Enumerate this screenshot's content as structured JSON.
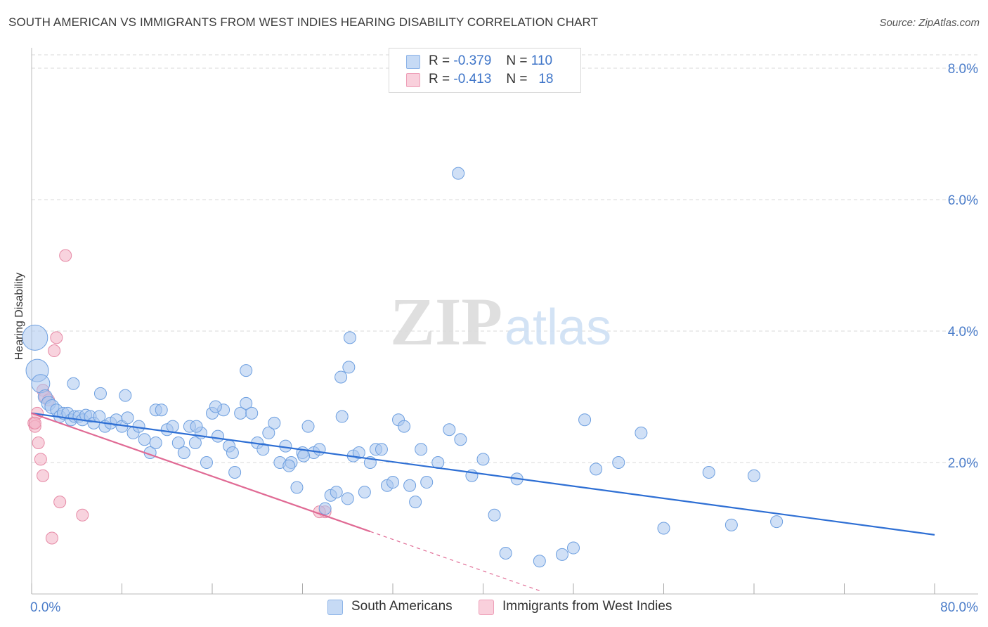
{
  "title": "SOUTH AMERICAN VS IMMIGRANTS FROM WEST INDIES HEARING DISABILITY CORRELATION CHART",
  "source": "Source: ZipAtlas.com",
  "watermark": {
    "zip": "ZIP",
    "atlas": "atlas"
  },
  "legend": {
    "rows": [
      {
        "r_label": "R =",
        "r_value": "-0.379",
        "n_label": "N =",
        "n_value": "110",
        "color": "#a9c7ef"
      },
      {
        "r_label": "R =",
        "r_value": "-0.413",
        "n_label": "N =",
        "n_value": "18",
        "color": "#f4b6c8"
      }
    ]
  },
  "bottom_legend": [
    {
      "label": "South Americans",
      "color": "#a9c7ef"
    },
    {
      "label": "Immigrants from West Indies",
      "color": "#f4b6c8"
    }
  ],
  "colors": {
    "blue_fill": "#a9c7ef",
    "blue_stroke": "#6d9fe0",
    "blue_line": "#2e6fd4",
    "pink_fill": "#f4b6c8",
    "pink_stroke": "#e68aa6",
    "pink_line": "#e06a94",
    "grid": "#d9d9d9",
    "tick_label": "#4a7cc9"
  },
  "chart_data": {
    "type": "scatter",
    "title": "SOUTH AMERICAN VS IMMIGRANTS FROM WEST INDIES HEARING DISABILITY CORRELATION CHART",
    "xlabel": "",
    "ylabel": "Hearing Disability",
    "xlim": [
      0,
      80
    ],
    "ylim": [
      0,
      8.0
    ],
    "x_tick_labels": [
      "0.0%",
      "80.0%"
    ],
    "y_ticks": [
      2.0,
      4.0,
      6.0,
      8.0
    ],
    "y_tick_labels": [
      "2.0%",
      "4.0%",
      "6.0%",
      "8.0%"
    ],
    "grid": true,
    "legend_position": "top-center",
    "series": [
      {
        "name": "South Americans",
        "r": -0.379,
        "n": 110,
        "trend": {
          "x": [
            0,
            80
          ],
          "y": [
            2.75,
            0.9
          ]
        },
        "points": [
          [
            0.3,
            3.9
          ],
          [
            0.5,
            3.4
          ],
          [
            0.8,
            3.2
          ],
          [
            1.2,
            3.0
          ],
          [
            1.5,
            2.9
          ],
          [
            1.8,
            2.85
          ],
          [
            2.2,
            2.8
          ],
          [
            2.5,
            2.7
          ],
          [
            2.8,
            2.75
          ],
          [
            3.2,
            2.75
          ],
          [
            3.5,
            2.65
          ],
          [
            3.8,
            2.7
          ],
          [
            4.2,
            2.7
          ],
          [
            4.5,
            2.65
          ],
          [
            4.8,
            2.72
          ],
          [
            5.2,
            2.7
          ],
          [
            5.5,
            2.6
          ],
          [
            6.0,
            2.7
          ],
          [
            6.5,
            2.55
          ],
          [
            7.0,
            2.6
          ],
          [
            7.5,
            2.65
          ],
          [
            8.0,
            2.55
          ],
          [
            8.5,
            2.68
          ],
          [
            9.0,
            2.45
          ],
          [
            9.5,
            2.55
          ],
          [
            10.0,
            2.35
          ],
          [
            10.5,
            2.15
          ],
          [
            11.0,
            2.8
          ],
          [
            11.5,
            2.8
          ],
          [
            11.0,
            2.3
          ],
          [
            12.0,
            2.5
          ],
          [
            12.5,
            2.55
          ],
          [
            13.0,
            2.3
          ],
          [
            13.5,
            2.15
          ],
          [
            14.0,
            2.55
          ],
          [
            14.5,
            2.3
          ],
          [
            15.0,
            2.45
          ],
          [
            15.5,
            2.0
          ],
          [
            16.0,
            2.75
          ],
          [
            16.5,
            2.4
          ],
          [
            17.0,
            2.8
          ],
          [
            17.5,
            2.25
          ],
          [
            17.8,
            2.15
          ],
          [
            18.0,
            1.85
          ],
          [
            18.5,
            2.75
          ],
          [
            19.0,
            2.9
          ],
          [
            19.5,
            2.75
          ],
          [
            20.0,
            2.3
          ],
          [
            20.5,
            2.2
          ],
          [
            21.0,
            2.45
          ],
          [
            21.5,
            2.6
          ],
          [
            22.0,
            2.0
          ],
          [
            22.5,
            2.25
          ],
          [
            23.0,
            2.0
          ],
          [
            23.5,
            1.62
          ],
          [
            24.0,
            2.15
          ],
          [
            24.5,
            2.55
          ],
          [
            25.0,
            2.15
          ],
          [
            25.5,
            2.2
          ],
          [
            26.0,
            1.3
          ],
          [
            26.5,
            1.5
          ],
          [
            27.0,
            1.55
          ],
          [
            27.5,
            2.7
          ],
          [
            28.0,
            1.45
          ],
          [
            28.5,
            2.1
          ],
          [
            29.0,
            2.15
          ],
          [
            29.5,
            1.55
          ],
          [
            30.0,
            2.0
          ],
          [
            30.5,
            2.2
          ],
          [
            31.0,
            2.2
          ],
          [
            31.5,
            1.65
          ],
          [
            32.0,
            1.7
          ],
          [
            32.5,
            2.65
          ],
          [
            33.0,
            2.55
          ],
          [
            33.5,
            1.65
          ],
          [
            34.0,
            1.4
          ],
          [
            34.5,
            2.2
          ],
          [
            35.0,
            1.7
          ],
          [
            36.0,
            2.0
          ],
          [
            37.0,
            2.5
          ],
          [
            38.0,
            2.35
          ],
          [
            39.0,
            1.8
          ],
          [
            40.0,
            2.05
          ],
          [
            41.0,
            1.2
          ],
          [
            42.0,
            0.62
          ],
          [
            43.0,
            1.75
          ],
          [
            45.0,
            0.5
          ],
          [
            47.0,
            0.6
          ],
          [
            48.0,
            0.7
          ],
          [
            49.0,
            2.65
          ],
          [
            50.0,
            1.9
          ],
          [
            52.0,
            2.0
          ],
          [
            54.0,
            2.45
          ],
          [
            56.0,
            1.0
          ],
          [
            60.0,
            1.85
          ],
          [
            62.0,
            1.05
          ],
          [
            64.0,
            1.8
          ],
          [
            66.0,
            1.1
          ],
          [
            37.8,
            6.4
          ],
          [
            28.2,
            3.9
          ],
          [
            27.4,
            3.3
          ],
          [
            28.1,
            3.45
          ],
          [
            19.0,
            3.4
          ],
          [
            8.3,
            3.02
          ],
          [
            6.1,
            3.05
          ],
          [
            3.7,
            3.2
          ],
          [
            24.1,
            2.1
          ],
          [
            22.8,
            1.95
          ],
          [
            16.3,
            2.85
          ],
          [
            14.6,
            2.55
          ]
        ]
      },
      {
        "name": "Immigrants from West Indies",
        "r": -0.413,
        "n": 18,
        "trend": {
          "x": [
            0,
            30
          ],
          "y": [
            2.75,
            0.95
          ]
        },
        "trend_dashed": {
          "x": [
            30,
            45
          ],
          "y": [
            0.95,
            0.05
          ]
        },
        "points": [
          [
            0.2,
            2.6
          ],
          [
            0.3,
            2.55
          ],
          [
            0.5,
            2.75
          ],
          [
            0.6,
            2.3
          ],
          [
            0.8,
            2.05
          ],
          [
            1.0,
            3.1
          ],
          [
            1.0,
            1.8
          ],
          [
            1.2,
            3.0
          ],
          [
            1.5,
            2.95
          ],
          [
            1.8,
            0.85
          ],
          [
            2.0,
            3.7
          ],
          [
            2.2,
            3.9
          ],
          [
            2.5,
            1.4
          ],
          [
            3.0,
            5.15
          ],
          [
            4.5,
            1.2
          ],
          [
            26.0,
            1.25
          ],
          [
            25.5,
            1.25
          ],
          [
            0.3,
            2.6
          ]
        ]
      }
    ]
  }
}
